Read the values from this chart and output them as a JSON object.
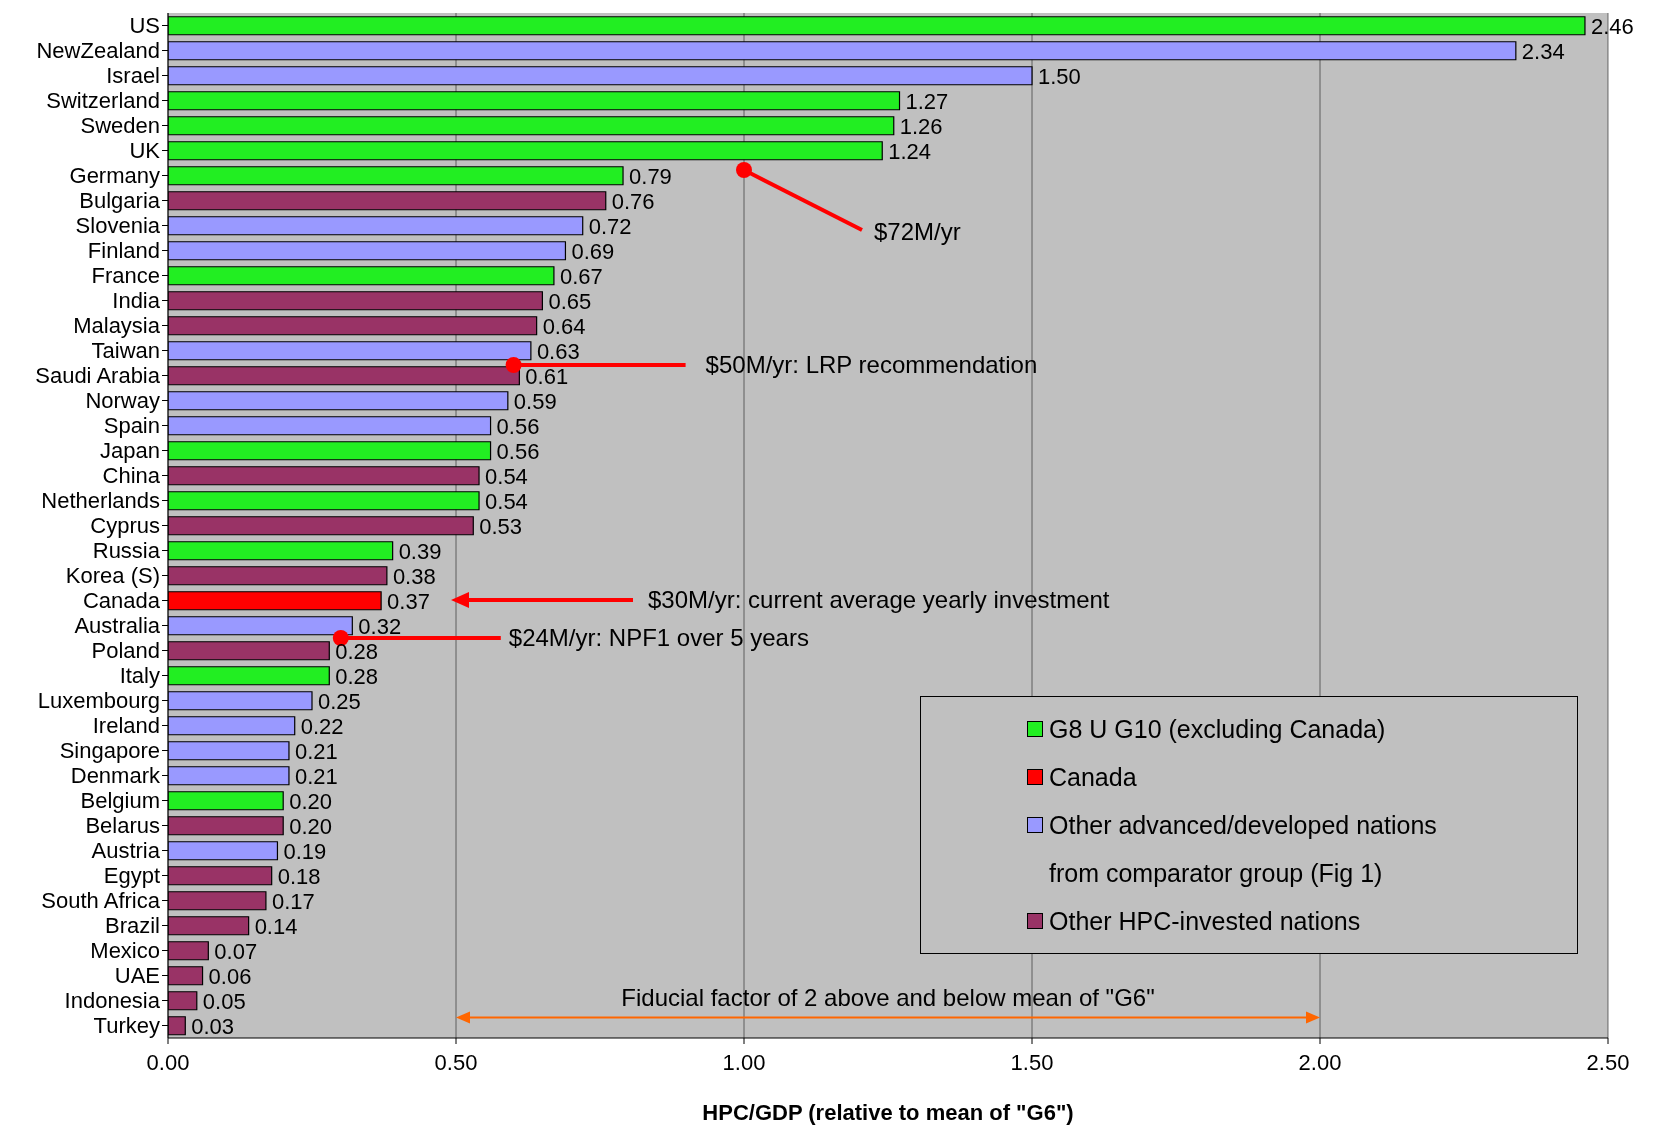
{
  "chart_data": {
    "type": "bar",
    "orientation": "horizontal",
    "stacked": true,
    "xlabel": "HPC/GDP (relative to mean of \"G6\")",
    "categories": [
      "US",
      "NewZealand",
      "Israel",
      "Switzerland",
      "Sweden",
      "UK",
      "Germany",
      "Bulgaria",
      "Slovenia",
      "Finland",
      "France",
      "India",
      "Malaysia",
      "Taiwan",
      "Saudi Arabia",
      "Norway",
      "Spain",
      "Japan",
      "China",
      "Netherlands",
      "Cyprus",
      "Russia",
      "Korea (S)",
      "Canada",
      "Australia",
      "Poland",
      "Italy",
      "Luxembourg",
      "Ireland",
      "Singapore",
      "Denmark",
      "Belgium",
      "Belarus",
      "Austria",
      "Egypt",
      "South Africa",
      "Brazil",
      "Mexico",
      "UAE",
      "Indonesia",
      "Turkey"
    ],
    "series": [
      {
        "name": "G8 U G10 (excluding Canada)",
        "color": "#22ee22",
        "values": [
          2.46,
          null,
          null,
          1.27,
          1.26,
          1.24,
          0.79,
          null,
          null,
          null,
          0.67,
          null,
          null,
          null,
          null,
          null,
          null,
          0.56,
          null,
          0.54,
          null,
          0.39,
          null,
          null,
          null,
          null,
          0.28,
          null,
          null,
          null,
          null,
          0.2,
          null,
          null,
          null,
          null,
          null,
          null,
          null,
          null,
          null
        ],
        "value_labels": [
          "2.46",
          null,
          null,
          "1.27",
          "1.26",
          "1.24",
          "0.79",
          null,
          null,
          null,
          "0.67",
          null,
          null,
          null,
          null,
          null,
          null,
          "0.56",
          null,
          "0.54",
          null,
          "0.39",
          null,
          null,
          null,
          null,
          "0.28",
          null,
          null,
          null,
          null,
          "0.20",
          null,
          null,
          null,
          null,
          null,
          null,
          null,
          null,
          null
        ]
      },
      {
        "name": "Canada",
        "color": "#ff0000",
        "values": [
          null,
          null,
          null,
          null,
          null,
          null,
          null,
          null,
          null,
          null,
          null,
          null,
          null,
          null,
          null,
          null,
          null,
          null,
          null,
          null,
          null,
          null,
          null,
          0.37,
          null,
          null,
          null,
          null,
          null,
          null,
          null,
          null,
          null,
          null,
          null,
          null,
          null,
          null,
          null,
          null,
          null
        ],
        "value_labels": [
          null,
          null,
          null,
          null,
          null,
          null,
          null,
          null,
          null,
          null,
          null,
          null,
          null,
          null,
          null,
          null,
          null,
          null,
          null,
          null,
          null,
          null,
          null,
          "0.37",
          null,
          null,
          null,
          null,
          null,
          null,
          null,
          null,
          null,
          null,
          null,
          null,
          null,
          null,
          null,
          null,
          null
        ]
      },
      {
        "name": "Other advanced/developed nations from comparator group (Fig 1)",
        "color": "#9999ff",
        "values": [
          null,
          2.34,
          1.5,
          null,
          null,
          null,
          null,
          null,
          0.72,
          0.69,
          null,
          null,
          null,
          0.63,
          null,
          0.59,
          0.56,
          null,
          null,
          null,
          null,
          null,
          null,
          null,
          0.32,
          null,
          null,
          0.25,
          0.22,
          0.21,
          0.21,
          null,
          null,
          0.19,
          null,
          null,
          null,
          null,
          null,
          null,
          null
        ],
        "value_labels": [
          null,
          "2.34",
          "1.50",
          null,
          null,
          null,
          null,
          null,
          "0.72",
          "0.69",
          null,
          null,
          null,
          "0.63",
          null,
          "0.59",
          "0.56",
          null,
          null,
          null,
          null,
          null,
          null,
          null,
          "0.32",
          null,
          null,
          "0.25",
          "0.22",
          "0.21",
          "0.21",
          null,
          null,
          "0.19",
          null,
          null,
          null,
          null,
          null,
          null,
          null
        ]
      },
      {
        "name": "Other HPC-invested nations",
        "color": "#993366",
        "values": [
          null,
          null,
          null,
          null,
          null,
          null,
          null,
          0.76,
          null,
          null,
          null,
          0.65,
          0.64,
          null,
          0.61,
          null,
          null,
          null,
          0.54,
          null,
          0.53,
          null,
          0.38,
          null,
          null,
          0.28,
          null,
          null,
          null,
          null,
          null,
          null,
          0.2,
          null,
          0.18,
          0.17,
          0.14,
          0.07,
          0.06,
          0.05,
          0.03
        ],
        "value_labels": [
          null,
          null,
          null,
          null,
          null,
          null,
          null,
          "0.76",
          null,
          null,
          null,
          "0.65",
          "0.64",
          null,
          "0.61",
          null,
          null,
          null,
          "0.54",
          null,
          "0.53",
          null,
          "0.38",
          null,
          null,
          "0.28",
          null,
          null,
          null,
          null,
          null,
          null,
          "0.20",
          null,
          "0.18",
          "0.17",
          "0.14",
          "0.07",
          "0.06",
          "0.05",
          "0.03"
        ]
      }
    ],
    "xlim": [
      0,
      2.5
    ],
    "xticks": [
      {
        "value": 0,
        "label": "0.00"
      },
      {
        "value": 0.5,
        "label": "0.50"
      },
      {
        "value": 1,
        "label": "1.00"
      },
      {
        "value": 1.5,
        "label": "1.50"
      },
      {
        "value": 2,
        "label": "2.00"
      },
      {
        "value": 2.5,
        "label": "2.50"
      }
    ],
    "grid": "x",
    "legend": "bottom right",
    "data_labels": true,
    "annotations": [
      "$72M/yr",
      {
        "text": "$50M/yr: LRP recommendation",
        "x": 0.6
      },
      "$30M/yr: current average yearly investment",
      {
        "text": "$24M/yr: NPF1 over 5 years",
        "x": 0.3
      },
      "Fiducial factor of 2 above and below mean of \"G6\""
    ]
  }
}
